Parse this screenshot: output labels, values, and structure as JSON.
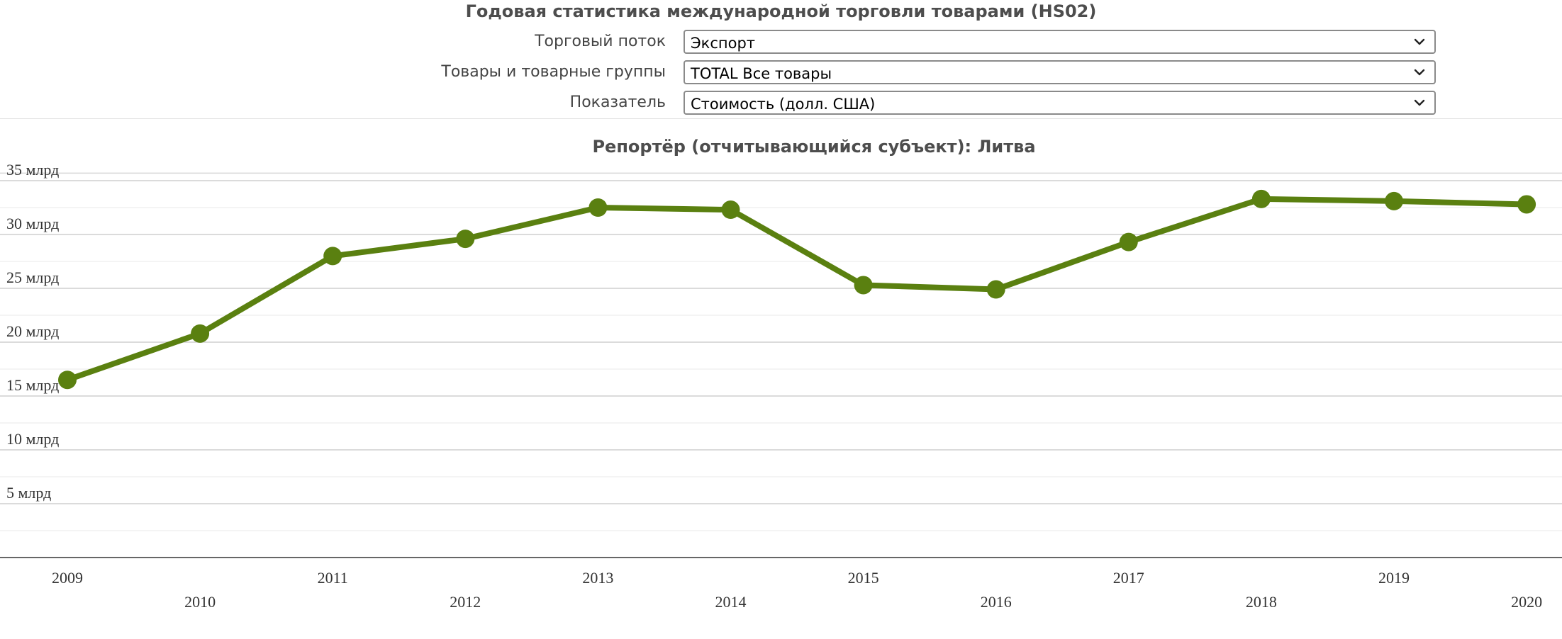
{
  "page": {
    "title": "Годовая статистика международной торговли товарами (HS02)"
  },
  "filters": [
    {
      "label": "Торговый поток",
      "value": "Экспорт",
      "icon": "chevron-down-icon"
    },
    {
      "label": "Товары и товарные группы",
      "value": "TOTAL Все товары",
      "icon": "chevron-down-icon"
    },
    {
      "label": "Показатель",
      "value": "Стоимость (долл. США)",
      "icon": "chevron-down-icon"
    }
  ],
  "chart_data": {
    "type": "line",
    "title": "Репортёр (отчитывающийся субъект): Литва",
    "xlabel": "",
    "ylabel": "",
    "categories": [
      "2009",
      "2010",
      "2011",
      "2012",
      "2013",
      "2014",
      "2015",
      "2016",
      "2017",
      "2018",
      "2019",
      "2020"
    ],
    "series": [
      {
        "values": [
          16.5,
          20.8,
          28.0,
          29.6,
          32.5,
          32.3,
          25.3,
          24.9,
          29.3,
          33.3,
          33.1,
          32.8
        ]
      }
    ],
    "y_ticks": [
      5,
      10,
      15,
      20,
      25,
      30,
      35
    ],
    "y_tick_labels": [
      "5 млрд",
      "10 млрд",
      "15 млрд",
      "20 млрд",
      "25 млрд",
      "30 млрд",
      "35 млрд"
    ],
    "ylim": [
      0,
      35.7
    ],
    "grid": true,
    "legend": "none",
    "color": "#5a8010"
  }
}
